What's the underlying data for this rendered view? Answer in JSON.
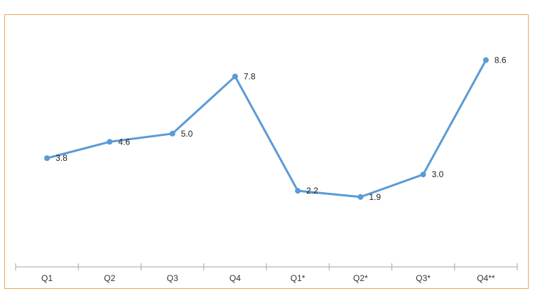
{
  "chart_data": {
    "type": "line",
    "title": "",
    "xlabel": "",
    "ylabel": "",
    "categories": [
      "Q1",
      "Q2",
      "Q3",
      "Q4",
      "Q1*",
      "Q2*",
      "Q3*",
      "Q4**"
    ],
    "series": [
      {
        "values": [
          3.8,
          4.6,
          5.0,
          7.8,
          2.2,
          1.9,
          3.0,
          8.6
        ]
      }
    ],
    "data_labels": [
      "3.8",
      "4.6",
      "5.0",
      "7.8",
      "2.2",
      "1.9",
      "3.0",
      "8.6"
    ],
    "grid": false,
    "legend": "none",
    "colors": {
      "line": "#5b9bd5",
      "border": "#f0a35e",
      "axis": "#a6a6a6"
    }
  }
}
